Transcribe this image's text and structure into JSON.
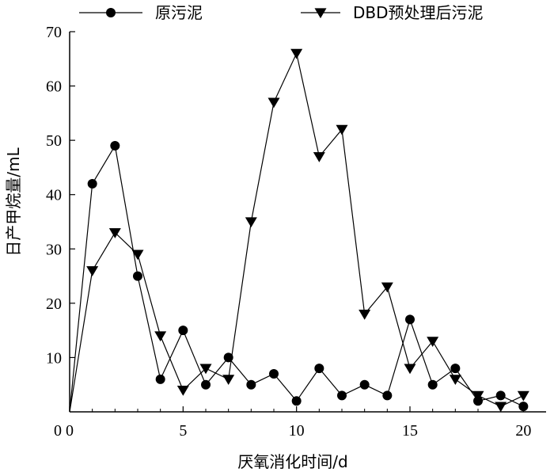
{
  "chart_data": {
    "type": "line",
    "title": "",
    "xlabel": "厌氧消化时间/d",
    "ylabel": "日产甲烷量/mL",
    "xlim": [
      0,
      21
    ],
    "ylim": [
      0,
      70
    ],
    "xticks": [
      0,
      5,
      10,
      15,
      20
    ],
    "yticks": [
      10,
      20,
      30,
      40,
      50,
      60,
      70
    ],
    "legend_position": "top",
    "series": [
      {
        "name": "原污泥",
        "marker": "circle",
        "color": "#000000",
        "x": [
          0,
          1,
          2,
          3,
          4,
          5,
          6,
          7,
          8,
          9,
          10,
          11,
          12,
          13,
          14,
          15,
          16,
          17,
          18,
          19,
          20
        ],
        "values": [
          0,
          42,
          49,
          25,
          6,
          15,
          5,
          10,
          5,
          7,
          2,
          8,
          3,
          5,
          3,
          17,
          5,
          8,
          2,
          3,
          1
        ]
      },
      {
        "name": "DBD预处理后污泥",
        "marker": "triangle-down",
        "color": "#000000",
        "x": [
          0,
          1,
          2,
          3,
          4,
          5,
          6,
          7,
          8,
          9,
          10,
          11,
          12,
          13,
          14,
          15,
          16,
          17,
          18,
          19,
          20
        ],
        "values": [
          0,
          26,
          33,
          29,
          14,
          4,
          8,
          6,
          35,
          57,
          66,
          47,
          52,
          18,
          23,
          8,
          13,
          6,
          3,
          1,
          3
        ]
      }
    ]
  }
}
